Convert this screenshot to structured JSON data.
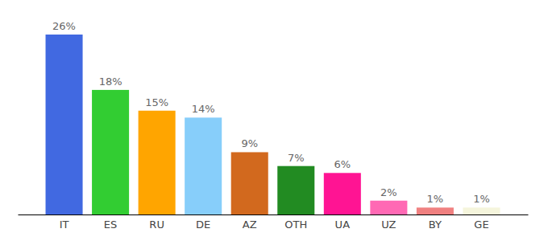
{
  "chart_data": {
    "type": "bar",
    "categories": [
      "IT",
      "ES",
      "RU",
      "DE",
      "AZ",
      "OTH",
      "UA",
      "UZ",
      "BY",
      "GE"
    ],
    "values": [
      26,
      18,
      15,
      14,
      9,
      7,
      6,
      2,
      1,
      1
    ],
    "value_labels": [
      "26%",
      "18%",
      "15%",
      "14%",
      "9%",
      "7%",
      "6%",
      "2%",
      "1%",
      "1%"
    ],
    "colors": [
      "#4169e1",
      "#32cd32",
      "#ffa500",
      "#87cefa",
      "#d2691e",
      "#228b22",
      "#ff1493",
      "#ff69b4",
      "#f08080",
      "#f5f5dc"
    ],
    "ylim": [
      0,
      26
    ],
    "grid": false,
    "data_labels": true,
    "tick_labels": "x"
  }
}
